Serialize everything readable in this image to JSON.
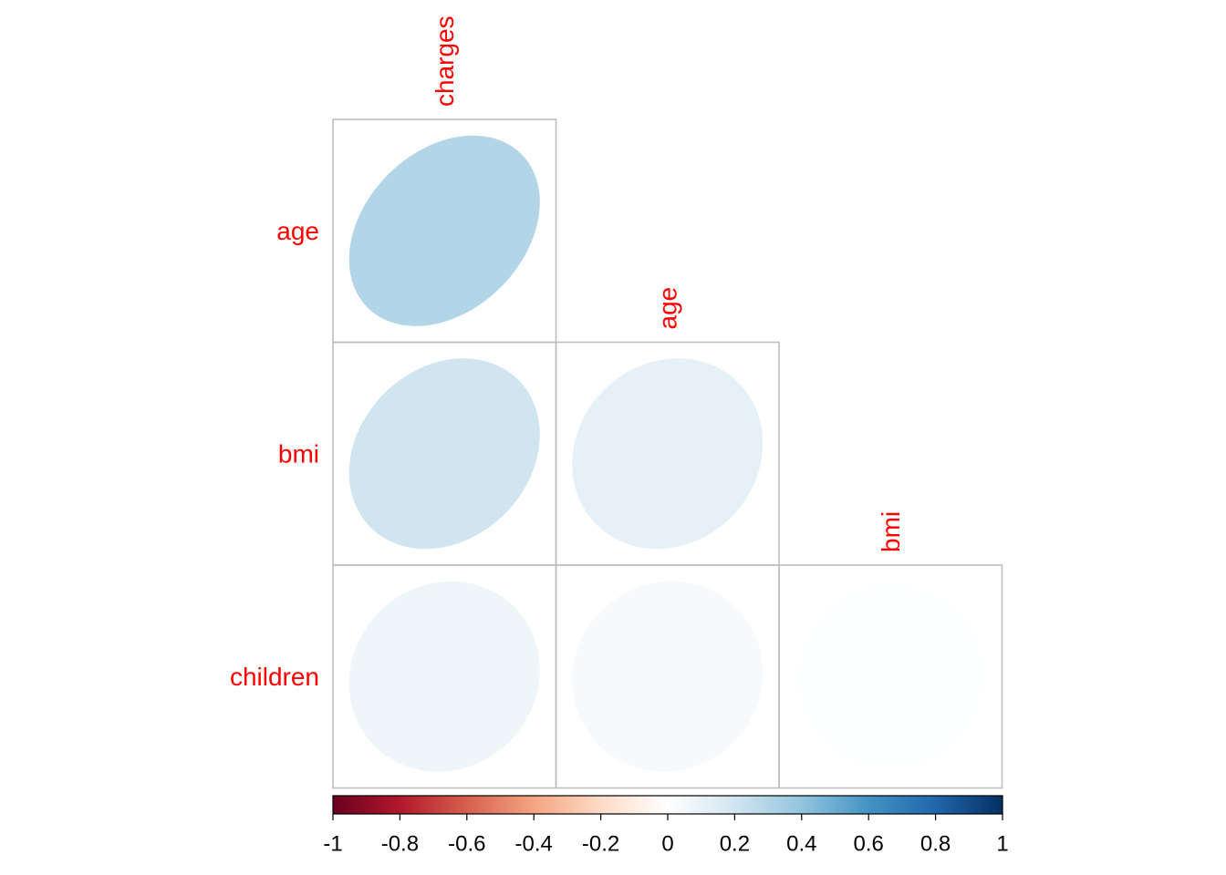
{
  "chart_data": {
    "type": "heatmap",
    "subtype": "correlation-ellipse-lower-triangle",
    "row_labels": [
      "age",
      "bmi",
      "children"
    ],
    "col_labels": [
      "charges",
      "age",
      "bmi"
    ],
    "cells": [
      {
        "row": "age",
        "col": "charges",
        "value": 0.3
      },
      {
        "row": "bmi",
        "col": "charges",
        "value": 0.2
      },
      {
        "row": "bmi",
        "col": "age",
        "value": 0.11
      },
      {
        "row": "children",
        "col": "charges",
        "value": 0.07
      },
      {
        "row": "children",
        "col": "age",
        "value": 0.04
      },
      {
        "row": "children",
        "col": "bmi",
        "value": 0.01
      }
    ],
    "colorbar": {
      "range": [
        -1,
        1
      ],
      "ticks": [
        "-1",
        "-0.8",
        "-0.6",
        "-0.4",
        "-0.2",
        "0",
        "0.2",
        "0.4",
        "0.6",
        "0.8",
        "1"
      ],
      "palette": [
        "#67001f",
        "#b2182b",
        "#d6604d",
        "#f4a582",
        "#fddbc7",
        "#ffffff",
        "#d1e5f0",
        "#92c5de",
        "#4393c3",
        "#2166ac",
        "#053061"
      ],
      "placement": "bottom"
    },
    "label_color": "#ff0000",
    "grid": true
  }
}
